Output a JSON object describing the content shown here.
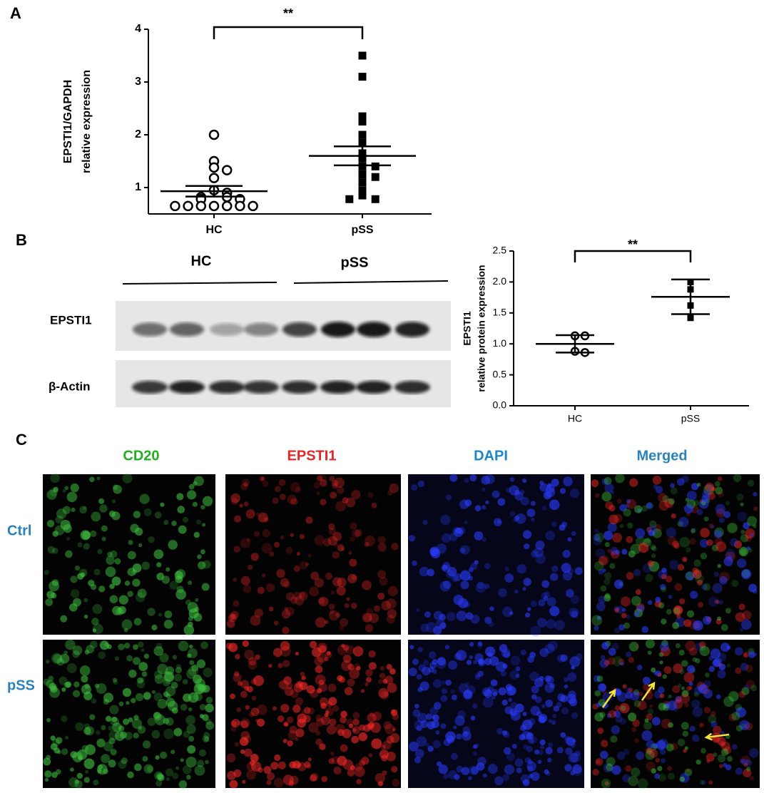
{
  "panel_labels": [
    "A",
    "B",
    "C"
  ],
  "chart_data": [
    {
      "type": "dot",
      "y_label": [
        "EPSTI1/GAPDH",
        "relative expression"
      ],
      "categories": [
        "HC",
        "pSS"
      ],
      "groups": [
        {
          "marker": "open-circle",
          "color": "#000000",
          "values": [
            2.0,
            1.5,
            1.38,
            1.33,
            1.18,
            0.95,
            0.9,
            0.82,
            0.82,
            0.78,
            0.78,
            0.65,
            0.65,
            0.65,
            0.65,
            0.65,
            0.65,
            0.65
          ],
          "mean": 0.93,
          "error": 0.1
        },
        {
          "marker": "square",
          "color": "#000000",
          "values": [
            3.5,
            3.1,
            2.35,
            2.25,
            2.0,
            1.85,
            1.65,
            1.55,
            1.4,
            1.4,
            1.25,
            1.2,
            1.1,
            0.95,
            0.85,
            0.78,
            0.78
          ],
          "mean": 1.6,
          "error": 0.18
        }
      ],
      "ylim": [
        0.5,
        4
      ],
      "yticks": [
        1,
        2,
        3,
        4
      ],
      "significance": "**"
    },
    {
      "type": "dot",
      "y_label": [
        "EPSTI1",
        "relative protein expression"
      ],
      "categories": [
        "HC",
        "pSS"
      ],
      "groups": [
        {
          "marker": "open-circle",
          "color": "#000000",
          "values": [
            1.13,
            1.13,
            0.88,
            0.86
          ],
          "mean": 1.0,
          "error": 0.14
        },
        {
          "marker": "square",
          "color": "#000000",
          "values": [
            2.0,
            1.88,
            1.62,
            1.42
          ],
          "mean": 1.76,
          "error": 0.28
        }
      ],
      "ylim": [
        0,
        2.5
      ],
      "yticks": [
        {
          "value": 0,
          "label": "0.0"
        },
        {
          "value": 0.5,
          "label": "0.5"
        },
        {
          "value": 1,
          "label": "1.0"
        },
        {
          "value": 1.5,
          "label": "1.5"
        },
        {
          "value": 2,
          "label": "2.0"
        },
        {
          "value": 2.5,
          "label": "2.5"
        }
      ],
      "significance": "**"
    }
  ],
  "blot": {
    "groups": [
      "HC",
      "pSS"
    ],
    "rows": [
      "EPSTI1",
      "β-Actin"
    ]
  },
  "microscopy": {
    "channels": [
      {
        "name": "CD20",
        "color": "#22b022"
      },
      {
        "name": "EPSTI1",
        "color": "#e02828"
      },
      {
        "name": "DAPI",
        "color": "#1f86c4"
      },
      {
        "name": "Merged",
        "color": "#2a82b8"
      }
    ],
    "rows": [
      "Ctrl",
      "pSS"
    ]
  }
}
